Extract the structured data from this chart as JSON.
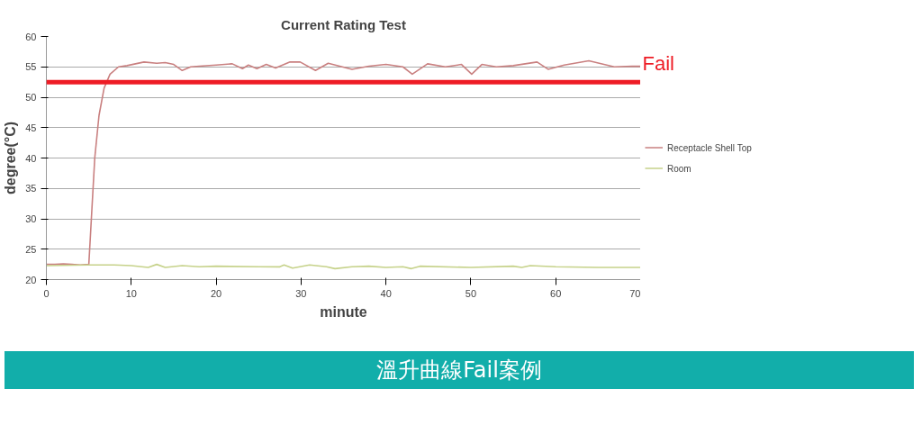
{
  "chart_data": {
    "type": "line",
    "title": "Current Rating Test",
    "xlabel": "minute",
    "ylabel": "degree(°C)",
    "xlim": [
      0,
      70
    ],
    "xticks": [
      0,
      10,
      20,
      30,
      40,
      50,
      60,
      70
    ],
    "ylim": [
      20,
      60
    ],
    "yticks": [
      20,
      25,
      30,
      35,
      40,
      45,
      50,
      55,
      60
    ],
    "grid": "y",
    "legend": "right",
    "line_style": "solid",
    "marker": "none",
    "series": [
      {
        "name": "Receptacle Shell Top",
        "color": "#c98080",
        "x": [
          0,
          1,
          2,
          3,
          4,
          5,
          5.3,
          5.7,
          6.2,
          6.8,
          7.5,
          8.5,
          9.5,
          10.5,
          11.5,
          13,
          14,
          15,
          16,
          17,
          18,
          20,
          21.9,
          23.1,
          23.8,
          24.8,
          25.9,
          27,
          28.7,
          29.9,
          31.7,
          33.2,
          36,
          38,
          40,
          42,
          43.1,
          44.9,
          47,
          48.9,
          50.1,
          51.3,
          53,
          55,
          57.8,
          59.1,
          61,
          63.9,
          66.9,
          69,
          70
        ],
        "values": [
          22.5,
          22.5,
          22.6,
          22.5,
          22.4,
          22.5,
          30,
          40,
          47,
          51.5,
          53.8,
          55,
          55.2,
          55.5,
          55.8,
          55.6,
          55.7,
          55.4,
          54.4,
          55,
          55.1,
          55.3,
          55.5,
          54.7,
          55.3,
          54.7,
          55.4,
          54.8,
          55.8,
          55.8,
          54.4,
          55.6,
          54.6,
          55.1,
          55.4,
          55,
          53.8,
          55.5,
          55,
          55.4,
          53.8,
          55.4,
          55,
          55.2,
          55.8,
          54.6,
          55.3,
          56,
          55,
          55.1,
          55.1
        ]
      },
      {
        "name": "Room",
        "color": "#c6d28a",
        "x": [
          0,
          5,
          8,
          10,
          12,
          13,
          14,
          16,
          18,
          20,
          25,
          27.5,
          28,
          29,
          31,
          33,
          34,
          36,
          38,
          40,
          42,
          43,
          44,
          50,
          55,
          56,
          57,
          60,
          65,
          70
        ],
        "values": [
          22.3,
          22.4,
          22.4,
          22.3,
          22.0,
          22.5,
          22.0,
          22.3,
          22.1,
          22.2,
          22.1,
          22.1,
          22.4,
          21.9,
          22.4,
          22.1,
          21.8,
          22.1,
          22.2,
          22.0,
          22.1,
          21.8,
          22.2,
          22.0,
          22.2,
          22.0,
          22.3,
          22.1,
          22.0,
          22.0
        ]
      }
    ],
    "ref_lines": [
      {
        "axis": "y",
        "value": 52.5,
        "label": "Fail",
        "color": "#ee1c25"
      }
    ],
    "annotations": [
      "溫升曲線Fail案例"
    ]
  }
}
